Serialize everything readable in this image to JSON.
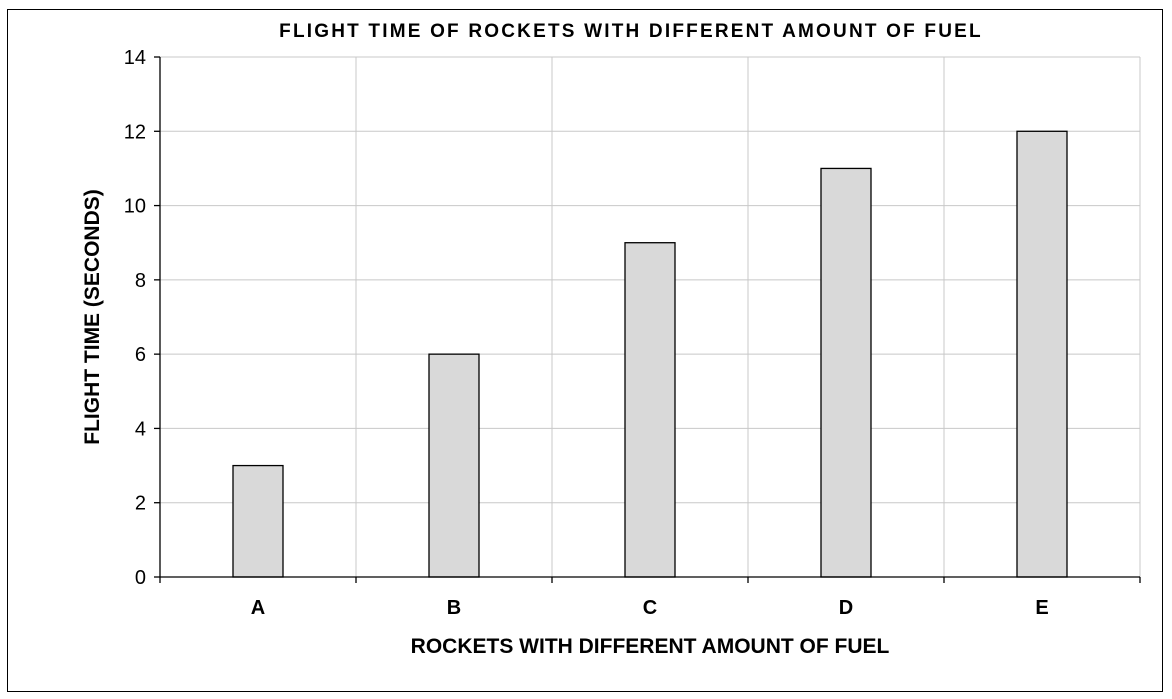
{
  "chart_data": {
    "type": "bar",
    "title": "FLIGHT TIME OF ROCKETS WITH DIFFERENT AMOUNT OF FUEL",
    "xlabel": "ROCKETS WITH DIFFERENT AMOUNT OF FUEL",
    "ylabel": "FLIGHT TIME (SECONDS)",
    "categories": [
      "A",
      "B",
      "C",
      "D",
      "E"
    ],
    "values": [
      3,
      6,
      9,
      11,
      12
    ],
    "ylim": [
      0,
      14
    ],
    "yticks": [
      0,
      2,
      4,
      6,
      8,
      10,
      12,
      14
    ],
    "grid": true,
    "legend": "none",
    "bar_color": "#d9d9d9",
    "bar_edge_color": "#000000",
    "grid_color": "#c8c8c8"
  }
}
